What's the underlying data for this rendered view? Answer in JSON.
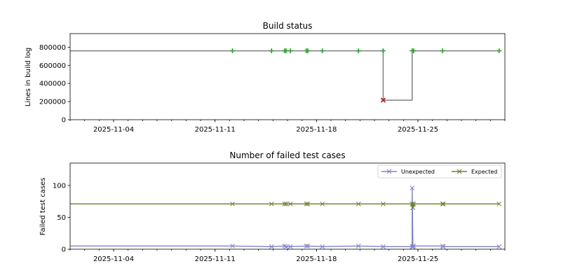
{
  "chart_data": [
    {
      "type": "line",
      "title": "Build status",
      "xlabel": "",
      "ylabel": "Lines in build log",
      "xlim": [
        "2025-11-01",
        "2025-12-01"
      ],
      "ylim": [
        0,
        950000
      ],
      "yticks": [
        0,
        200000,
        400000,
        600000,
        800000
      ],
      "ytick_labels": [
        "0",
        "200000",
        "400000",
        "600000",
        "800000"
      ],
      "xticks": [
        "2025-11-04",
        "2025-11-11",
        "2025-11-18",
        "2025-11-25"
      ],
      "step_line": {
        "x": [
          "2025-11-01",
          "2025-11-22.6",
          "2025-11-22.6",
          "2025-11-24.6",
          "2025-11-24.6",
          "2025-11-30.6"
        ],
        "y": [
          760000,
          760000,
          215000,
          215000,
          760000,
          760000
        ],
        "color": "#808080"
      },
      "success_points": {
        "x": [
          "2025-11-12.2",
          "2025-11-14.9",
          "2025-11-15.8",
          "2025-11-15.9",
          "2025-11-16.2",
          "2025-11-17.3",
          "2025-11-17.4",
          "2025-11-18.4",
          "2025-11-20.9",
          "2025-11-22.6",
          "2025-11-24.6",
          "2025-11-24.7",
          "2025-11-26.7",
          "2025-11-30.6"
        ],
        "y": [
          760000,
          760000,
          760000,
          760000,
          760000,
          760000,
          760000,
          760000,
          760000,
          760000,
          760000,
          760000,
          760000,
          760000
        ],
        "marker": "+",
        "color": "#2ca02c"
      },
      "failure_points": {
        "x": [
          "2025-11-22.6"
        ],
        "y": [
          215000
        ],
        "marker": "x",
        "color": "#b22222"
      }
    },
    {
      "type": "line",
      "title": "Number of failed test cases",
      "xlabel": "",
      "ylabel": "Failed test cases",
      "xlim": [
        "2025-11-01",
        "2025-12-01"
      ],
      "ylim": [
        0,
        135
      ],
      "yticks": [
        0,
        50,
        100
      ],
      "ytick_labels": [
        "0",
        "50",
        "100"
      ],
      "xticks": [
        "2025-11-04",
        "2025-11-11",
        "2025-11-18",
        "2025-11-25"
      ],
      "legend": "top-right",
      "series": [
        {
          "name": "Unexpected",
          "color": "#8080cc",
          "marker": "x",
          "x": [
            "2025-11-01",
            "2025-11-12.2",
            "2025-11-14.9",
            "2025-11-15.8",
            "2025-11-15.9",
            "2025-11-16.2",
            "2025-11-17.3",
            "2025-11-17.4",
            "2025-11-18.4",
            "2025-11-20.9",
            "2025-11-22.6",
            "2025-11-24.6",
            "2025-11-24.6",
            "2025-11-24.65",
            "2025-11-24.7",
            "2025-11-26.7",
            "2025-11-26.75",
            "2025-11-30.6"
          ],
          "y": [
            5,
            5,
            4,
            5,
            4,
            4,
            5,
            5,
            4,
            5,
            4,
            4,
            96,
            4,
            5,
            5,
            4,
            4
          ]
        },
        {
          "name": "Expected",
          "color": "#6b7f2e",
          "marker": "x",
          "x": [
            "2025-11-01",
            "2025-11-12.2",
            "2025-11-14.9",
            "2025-11-15.8",
            "2025-11-15.9",
            "2025-11-16.2",
            "2025-11-17.3",
            "2025-11-17.4",
            "2025-11-18.4",
            "2025-11-20.9",
            "2025-11-22.6",
            "2025-11-24.6",
            "2025-11-24.6",
            "2025-11-24.65",
            "2025-11-24.7",
            "2025-11-26.7",
            "2025-11-26.75",
            "2025-11-30.6"
          ],
          "y": [
            71,
            71,
            71,
            71,
            71,
            71,
            71,
            71,
            71,
            71,
            71,
            71,
            71,
            65,
            71,
            71,
            71,
            71
          ]
        }
      ]
    }
  ]
}
